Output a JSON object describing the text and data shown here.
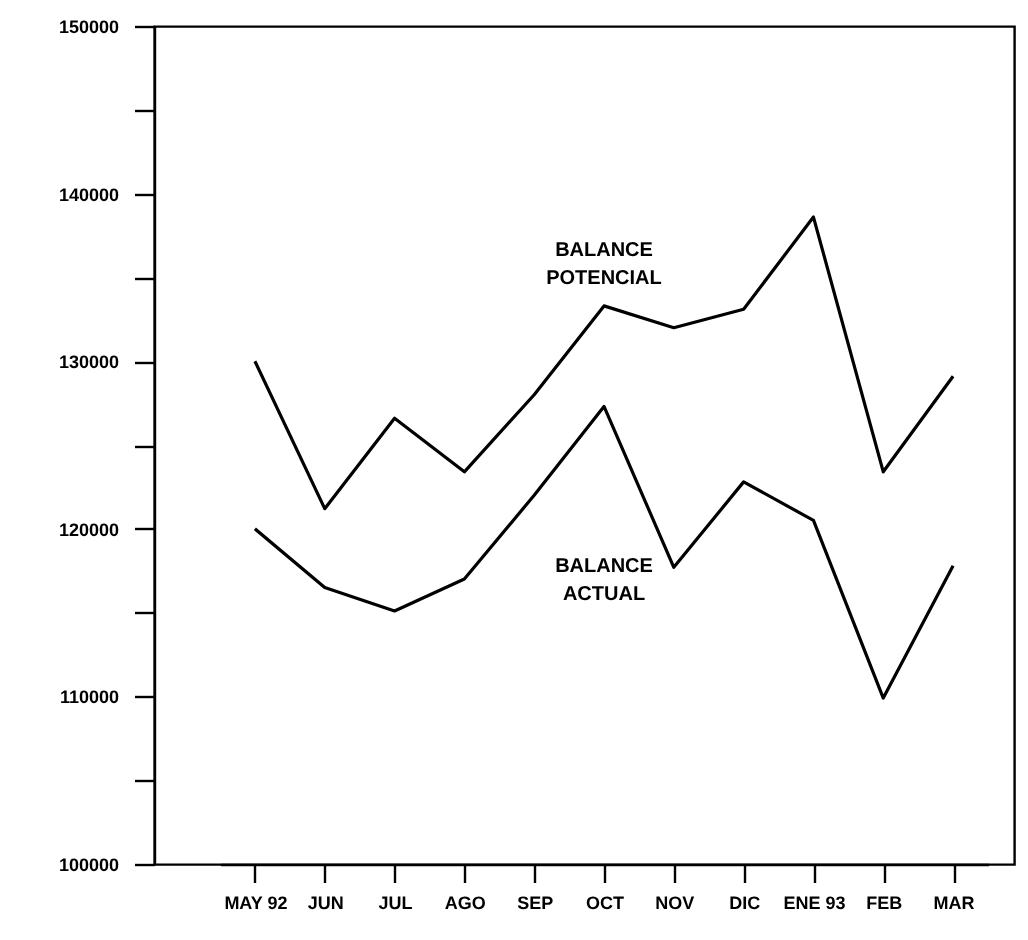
{
  "chart_data": {
    "type": "line",
    "categories": [
      "MAY 92",
      "JUN",
      "JUL",
      "AGO",
      "SEP",
      "OCT",
      "NOV",
      "DIC",
      "ENE 93",
      "FEB",
      "MAR"
    ],
    "series": [
      {
        "name": "BALANCE POTENCIAL",
        "color": "#000000",
        "values": [
          130000,
          121200,
          126600,
          123400,
          128000,
          133300,
          132000,
          133100,
          138600,
          123400,
          129100
        ]
      },
      {
        "name": "BALANCE ACTUAL",
        "color": "#000000",
        "values": [
          120000,
          116500,
          115100,
          117000,
          122000,
          127300,
          117700,
          122800,
          120500,
          109900,
          117800
        ]
      }
    ],
    "ylim": [
      100000,
      150000
    ],
    "yticks": [
      100000,
      {
        "value": 105000,
        "label": null
      },
      110000,
      {
        "value": 115000,
        "label": null
      },
      120000,
      {
        "value": 125000,
        "label": null
      },
      130000,
      {
        "value": 135000,
        "label": null
      },
      140000,
      {
        "value": 145000,
        "label": null
      },
      150000
    ],
    "grid": false,
    "marker": "none",
    "line_style": "solid"
  }
}
